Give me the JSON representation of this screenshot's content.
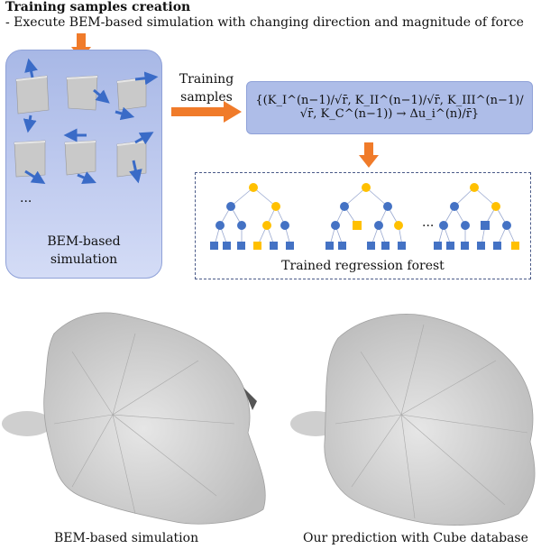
{
  "header": {
    "title": "Training samples creation",
    "subtitle": "- Execute BEM-based simulation with changing direction and magnitude of force"
  },
  "simulation_panel": {
    "label_line1": "BEM-based",
    "label_line2": "simulation",
    "ellipsis": "..."
  },
  "training_arrow": {
    "label_line1": "Training",
    "label_line2": "samples"
  },
  "formula": {
    "text": "{(K_I^(n−1)/√r̄, K_II^(n−1)/√r̄, K_III^(n−1)/√r̄, K_C^(n−1)) → Δu_i^(n)/r̄}"
  },
  "forest": {
    "label": "Trained regression forest",
    "ellipsis": "...",
    "colors": {
      "circle_blue": "#4472c4",
      "circle_yellow": "#ffc000"
    }
  },
  "captions": {
    "left": "BEM-based simulation",
    "right": "Our prediction with Cube database"
  },
  "colors": {
    "orange_arrow": "#f07b2a",
    "panel_blue": "#aebde8",
    "arrow_blue": "#3a6bc7"
  }
}
